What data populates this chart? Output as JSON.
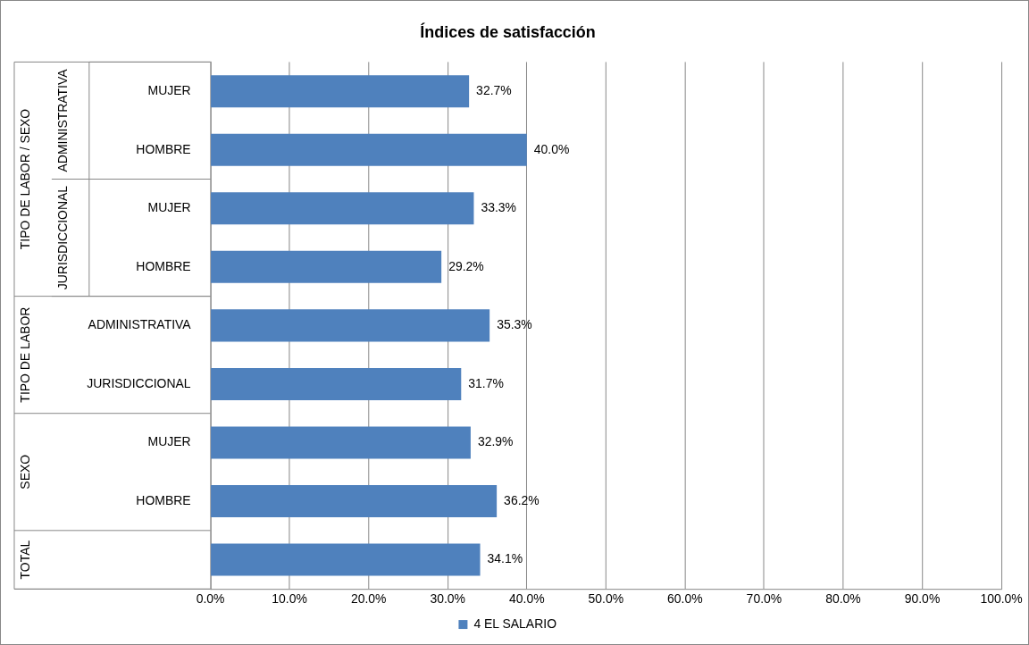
{
  "chart_data": {
    "type": "bar",
    "orientation": "horizontal",
    "title": "Índices de satisfacción",
    "categories": [
      "MUJER",
      "HOMBRE",
      "MUJER",
      "HOMBRE",
      "ADMINISTRATIVA",
      "JURISDICCIONAL",
      "MUJER",
      "HOMBRE",
      null
    ],
    "series": [
      {
        "name": "4 EL SALARIO",
        "color": "#4f81bd",
        "values": [
          32.7,
          40.0,
          33.3,
          29.2,
          35.3,
          31.7,
          32.9,
          36.2,
          34.1
        ],
        "value_labels": [
          "32.7%",
          "40.0%",
          "33.3%",
          "29.2%",
          "35.3%",
          "31.7%",
          "32.9%",
          "36.2%",
          "34.1%"
        ]
      }
    ],
    "xlim": [
      0,
      100
    ],
    "xticks": [
      {
        "value": 0,
        "label": "0.0%"
      },
      {
        "value": 10,
        "label": "10.0%"
      },
      {
        "value": 20,
        "label": "20.0%"
      },
      {
        "value": 30,
        "label": "30.0%"
      },
      {
        "value": 40,
        "label": "40.0%"
      },
      {
        "value": 50,
        "label": "50.0%"
      },
      {
        "value": 60,
        "label": "60.0%"
      },
      {
        "value": 70,
        "label": "70.0%"
      },
      {
        "value": 80,
        "label": "80.0%"
      },
      {
        "value": 90,
        "label": "90.0%"
      },
      {
        "value": 100,
        "label": "100.0%"
      }
    ],
    "grid": "x",
    "legend": "bottom",
    "annotations": [
      "TIPO DE LABOR / SEXO",
      "ADMINISTRATIVA",
      "JURISDICCIONAL",
      "TIPO DE LABOR",
      "SEXO",
      "TOTAL"
    ]
  }
}
